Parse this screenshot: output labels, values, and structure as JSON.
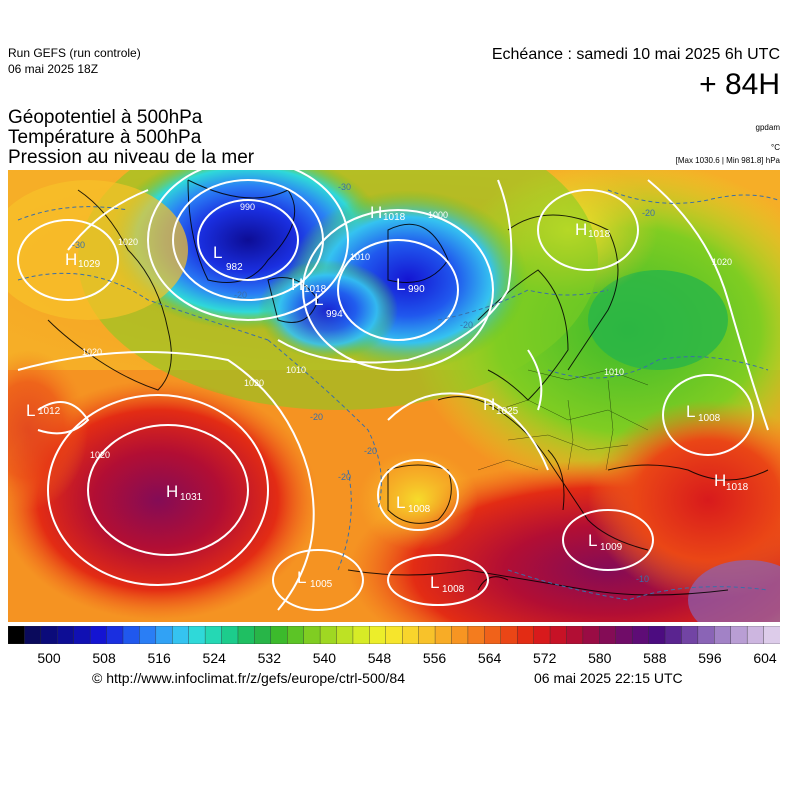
{
  "header": {
    "run_title": "Run GEFS (run controle)",
    "run_date": "06 mai 2025 18Z",
    "echeance": "Echéance : samedi 10 mai 2025 6h UTC",
    "lead": "+ 84H"
  },
  "parameters": [
    "Géopotentiel à 500hPa",
    "Température à 500hPa",
    "Pression au niveau de la mer"
  ],
  "units": {
    "gpdam": "gpdam",
    "degc": "°C",
    "maxmin": "[Max 1030.6 | Min 981.8] hPa"
  },
  "pressure_centers": [
    {
      "type": "H",
      "value": "1029"
    },
    {
      "type": "L",
      "value": "982"
    },
    {
      "type": "H",
      "value": "1018"
    },
    {
      "type": "L",
      "value": "994"
    },
    {
      "type": "H",
      "value": "1018"
    },
    {
      "type": "L",
      "value": "990"
    },
    {
      "type": "H",
      "value": "1018"
    },
    {
      "type": "L",
      "value": "1012"
    },
    {
      "type": "H",
      "value": "1025"
    },
    {
      "type": "H",
      "value": "1031"
    },
    {
      "type": "L",
      "value": "1008"
    },
    {
      "type": "L",
      "value": "1005"
    },
    {
      "type": "L",
      "value": "1008"
    },
    {
      "type": "L",
      "value": "1009"
    },
    {
      "type": "L",
      "value": "1008"
    },
    {
      "type": "H",
      "value": "1018"
    }
  ],
  "isobar_labels": [
    "990",
    "1000",
    "1010",
    "1010",
    "1020",
    "1020",
    "1020",
    "1020",
    "1020",
    "1010"
  ],
  "isotherm_labels": [
    "-30",
    "-30",
    "-20",
    "-20",
    "-20",
    "-20",
    "-20",
    "-20",
    "-10"
  ],
  "colorbar": {
    "ticks": [
      "500",
      "508",
      "516",
      "524",
      "532",
      "540",
      "548",
      "556",
      "564",
      "572",
      "580",
      "588",
      "596",
      "604"
    ],
    "colors": [
      "#000000",
      "#0a0a5c",
      "#0b0b7a",
      "#0d0d95",
      "#1010b3",
      "#1414d2",
      "#1a2fe0",
      "#2058ee",
      "#2a7ef5",
      "#31a2f5",
      "#35c3f0",
      "#2fd9d9",
      "#25d8b4",
      "#1ccc8c",
      "#1fbf62",
      "#28b548",
      "#3cba2c",
      "#5cc426",
      "#80cd22",
      "#9fd822",
      "#bde224",
      "#d7eb26",
      "#ecee2a",
      "#f6e52c",
      "#f8d52c",
      "#f8c22a",
      "#f8ac26",
      "#f79522",
      "#f47c1e",
      "#f0621a",
      "#ea4616",
      "#e32c14",
      "#d81a1c",
      "#c71226",
      "#b20e34",
      "#9a0c44",
      "#840c56",
      "#700c68",
      "#5e0c76",
      "#4c0c80",
      "#5a2490",
      "#7244a4",
      "#8a64b6",
      "#a282c6",
      "#b99ed4",
      "#cdb6e0",
      "#ddccea"
    ]
  },
  "footer": {
    "source": "© http://www.infoclimat.fr/z/gefs/europe/ctrl-500/84",
    "timestamp": "06 mai 2025 22:15 UTC"
  }
}
